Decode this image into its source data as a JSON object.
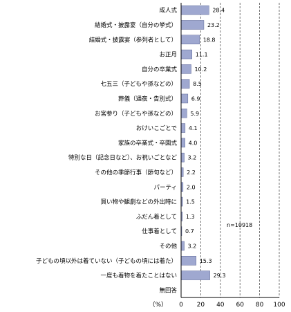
{
  "chart_data": {
    "type": "bar",
    "orientation": "horizontal",
    "categories": [
      "成人式",
      "結婚式・披露宴（自分の挙式）",
      "結婚式・披露宴（参列者として）",
      "お正月",
      "自分の卒業式",
      "七五三（子どもや孫などの）",
      "葬儀（通夜・告別式）",
      "お宮参り（子どもや孫などの）",
      "おけいこごとで",
      "家族の卒業式・卒園式",
      "特別な日（記念日など）、お祝いごとなど",
      "その他の季節行事（節句など）",
      "パーティ",
      "買い物や観劇などの外出時に",
      "ふだん着として",
      "仕事着として",
      "その他",
      "子どもの頃以外は着ていない（子どもの頃には着た）",
      "一度も着物を着たことはない",
      "無回答"
    ],
    "values": [
      28.4,
      23.2,
      18.8,
      11.1,
      10.2,
      8.5,
      6.9,
      5.9,
      4.1,
      4.0,
      3.2,
      2.2,
      2.0,
      1.5,
      1.3,
      0.7,
      3.2,
      15.3,
      29.3,
      null
    ],
    "value_labels": [
      "28.4",
      "23.2",
      "18.8",
      "11.1",
      "10.2",
      "8.5",
      "6.9",
      "5.9",
      "4.1",
      "4.0",
      "3.2",
      "2.2",
      "2.0",
      "1.5",
      "1.3",
      "0.7",
      "3.2",
      "15.3",
      "29.3",
      ""
    ],
    "xlim": [
      0,
      100
    ],
    "xticks": [
      "0",
      "20",
      "40",
      "60",
      "80",
      "100"
    ],
    "xtick_values": [
      0,
      20,
      40,
      60,
      80,
      100
    ],
    "unit_label": "（%）",
    "note": "n=10918",
    "grid": "dashed vertical at 20, 40, 60, 80, 100",
    "bar_color": "#9fa8d0",
    "bar_border": "#5c6694"
  }
}
